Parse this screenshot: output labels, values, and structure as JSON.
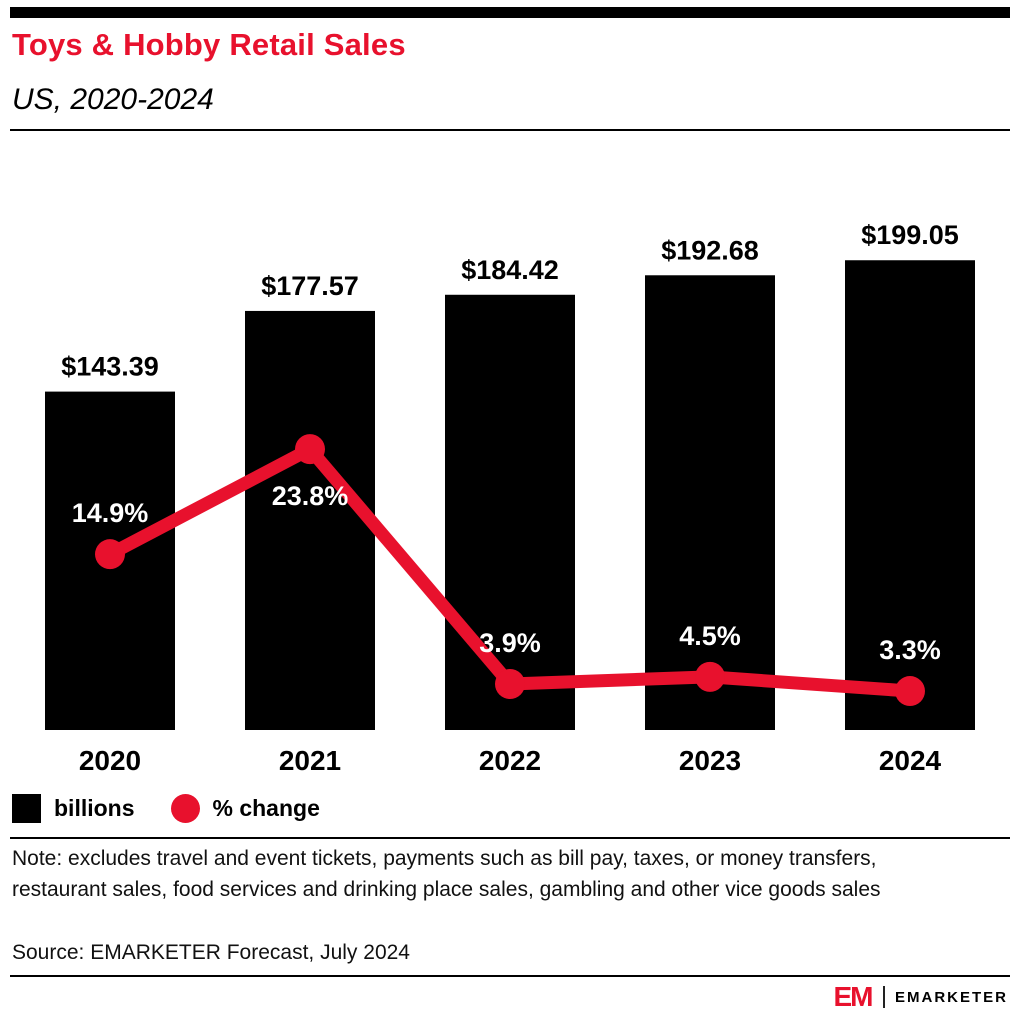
{
  "chart_data": {
    "type": "bar+line combo",
    "title": "Toys & Hobby Retail Sales",
    "subtitle": "US, 2020-2024",
    "categories": [
      "2020",
      "2021",
      "2022",
      "2023",
      "2024"
    ],
    "series": [
      {
        "name": "billions",
        "type": "bar",
        "color": "#000000",
        "values": [
          143.39,
          177.57,
          184.42,
          192.68,
          199.05
        ],
        "labels": [
          "$143.39",
          "$177.57",
          "$184.42",
          "$192.68",
          "$199.05"
        ]
      },
      {
        "name": "% change",
        "type": "line",
        "color": "#E8112D",
        "values": [
          14.9,
          23.8,
          3.9,
          4.5,
          3.3
        ],
        "labels": [
          "14.9%",
          "23.8%",
          "3.9%",
          "4.5%",
          "3.3%"
        ],
        "label_positions": [
          "above",
          "below",
          "above",
          "above",
          "above"
        ]
      }
    ],
    "legend": [
      {
        "label": "billions",
        "swatch": "square",
        "color": "#000000"
      },
      {
        "label": "% change",
        "swatch": "circle",
        "color": "#E8112D"
      }
    ],
    "legend_position": "bottom-left",
    "grid": false,
    "axes_visible": false,
    "bar_axis_max": 250,
    "line_axis_max": 50
  },
  "footer": {
    "note": "Note: excludes travel and event tickets, payments such as bill pay, taxes, or money transfers, restaurant sales, food services and drinking place sales, gambling and other vice goods sales",
    "source": "Source: EMARKETER Forecast, July 2024"
  },
  "branding": {
    "logo_mark": "EM",
    "logo_text": "EMARKETER"
  },
  "colors": {
    "accent_red": "#E8112D",
    "bar_black": "#000000",
    "page_bg": "#FFFFFF"
  }
}
